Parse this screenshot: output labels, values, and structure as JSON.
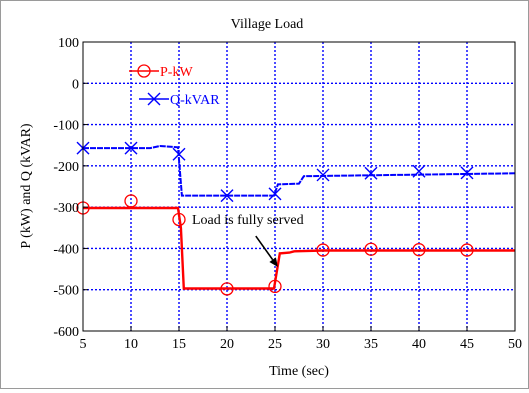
{
  "chart_data": {
    "type": "line",
    "title": "Village Load",
    "xlabel": "Time (sec)",
    "ylabel": "P (kW) and Q (kVAR)",
    "xlim": [
      5,
      50
    ],
    "ylim": [
      -600,
      100
    ],
    "xticks": [
      5,
      10,
      15,
      20,
      25,
      30,
      35,
      40,
      45,
      50
    ],
    "yticks": [
      100,
      0,
      -100,
      -200,
      -300,
      -400,
      -500,
      -600
    ],
    "grid": true,
    "legend_position": "top-left",
    "annotation": {
      "text": "Load is fully served",
      "arrow_from": [
        23.0,
        -370
      ],
      "arrow_to": [
        25.3,
        -445
      ]
    },
    "series": [
      {
        "name": "P-kW",
        "color": "#ff0000",
        "marker": "circle",
        "line": [
          [
            5,
            -302
          ],
          [
            14.9,
            -302
          ],
          [
            15.2,
            -350
          ],
          [
            15.5,
            -497
          ],
          [
            24.9,
            -497
          ],
          [
            25.2,
            -455
          ],
          [
            25.5,
            -412
          ],
          [
            26.5,
            -410
          ],
          [
            27,
            -407
          ],
          [
            30,
            -405
          ],
          [
            50,
            -405
          ]
        ],
        "markers": [
          [
            5,
            -302
          ],
          [
            10,
            -285
          ],
          [
            15,
            -330
          ],
          [
            20,
            -498
          ],
          [
            25,
            -492
          ],
          [
            30,
            -404
          ],
          [
            35,
            -402
          ],
          [
            40,
            -403
          ],
          [
            45,
            -404
          ]
        ]
      },
      {
        "name": "Q-kVAR",
        "color": "#0000ff",
        "marker": "x",
        "line": [
          [
            5,
            -157
          ],
          [
            11,
            -157
          ],
          [
            12,
            -157
          ],
          [
            13,
            -152
          ],
          [
            14.9,
            -155
          ],
          [
            15.3,
            -272
          ],
          [
            24.9,
            -272
          ],
          [
            25.3,
            -245
          ],
          [
            27.5,
            -243
          ],
          [
            28,
            -225
          ],
          [
            50,
            -218
          ]
        ],
        "markers": [
          [
            5,
            -157
          ],
          [
            10,
            -157
          ],
          [
            15,
            -172
          ],
          [
            20,
            -272
          ],
          [
            25,
            -268
          ],
          [
            30,
            -222
          ],
          [
            35,
            -218
          ],
          [
            40,
            -213
          ],
          [
            45,
            -217
          ]
        ]
      }
    ]
  }
}
